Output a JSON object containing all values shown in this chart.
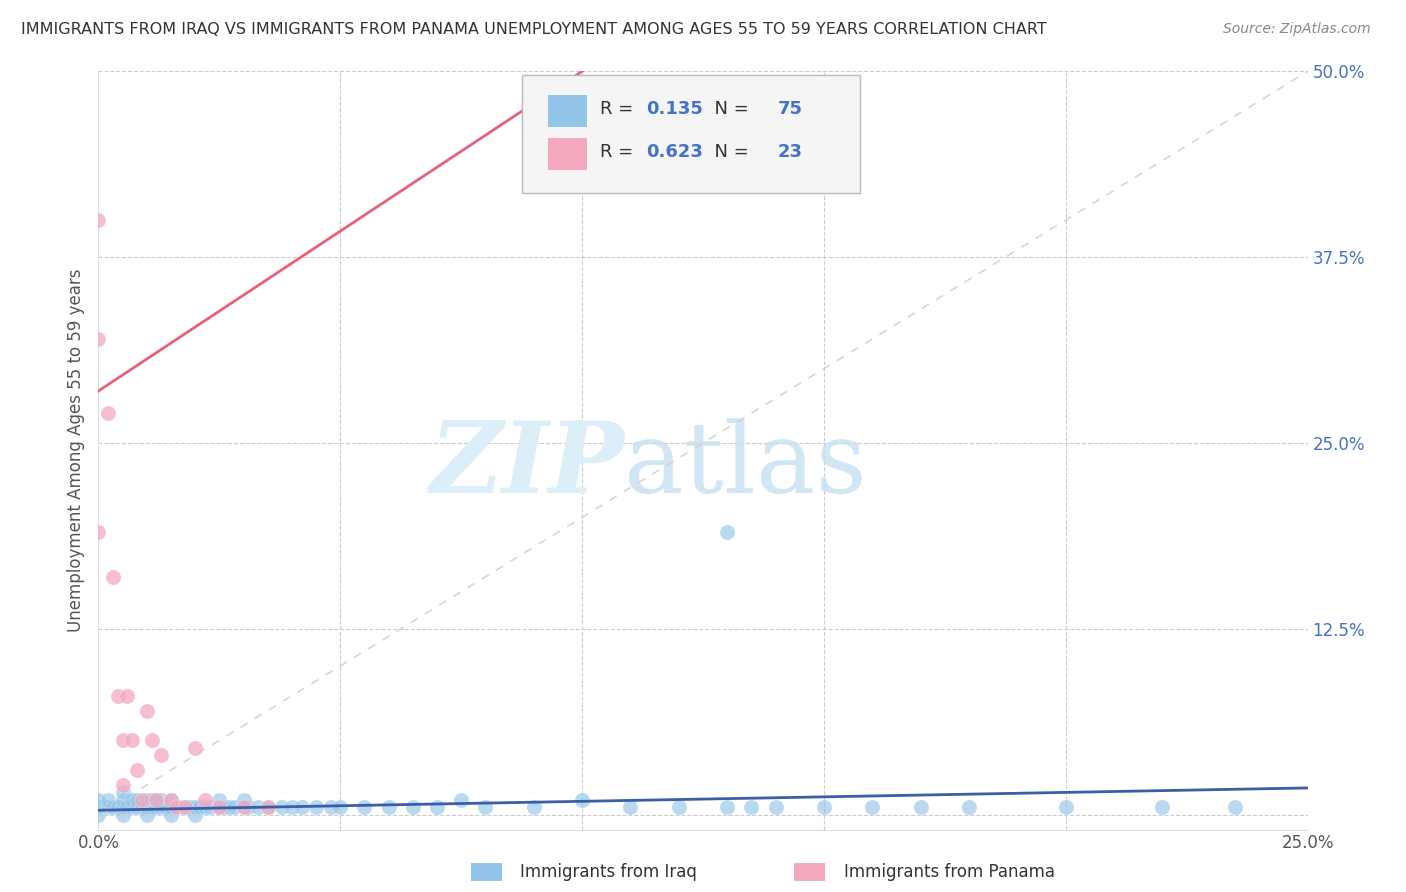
{
  "title": "IMMIGRANTS FROM IRAQ VS IMMIGRANTS FROM PANAMA UNEMPLOYMENT AMONG AGES 55 TO 59 YEARS CORRELATION CHART",
  "source": "Source: ZipAtlas.com",
  "ylabel": "Unemployment Among Ages 55 to 59 years",
  "xlim": [
    0.0,
    0.25
  ],
  "ylim": [
    -0.01,
    0.5
  ],
  "xticks": [
    0.0,
    0.05,
    0.1,
    0.15,
    0.2,
    0.25
  ],
  "xticklabels": [
    "0.0%",
    "",
    "",
    "",
    "",
    "25.0%"
  ],
  "yticks": [
    0.0,
    0.125,
    0.25,
    0.375,
    0.5
  ],
  "yticklabels": [
    "",
    "12.5%",
    "25.0%",
    "37.5%",
    "50.0%"
  ],
  "legend_iraq_R": "0.135",
  "legend_iraq_N": "75",
  "legend_panama_R": "0.623",
  "legend_panama_N": "23",
  "iraq_color": "#92C5E8",
  "panama_color": "#F4A8BE",
  "iraq_line_color": "#3A5FA8",
  "panama_line_color": "#E8607A",
  "ref_line_color": "#CCCCCC",
  "background_color": "#ffffff",
  "grid_color": "#cccccc",
  "legend_labels": [
    "Immigrants from Iraq",
    "Immigrants from Panama"
  ],
  "iraq_scatter_x": [
    0.0,
    0.0,
    0.0,
    0.002,
    0.002,
    0.003,
    0.004,
    0.005,
    0.005,
    0.005,
    0.005,
    0.006,
    0.007,
    0.007,
    0.008,
    0.008,
    0.009,
    0.01,
    0.01,
    0.01,
    0.011,
    0.011,
    0.012,
    0.012,
    0.013,
    0.013,
    0.014,
    0.015,
    0.015,
    0.015,
    0.016,
    0.017,
    0.018,
    0.019,
    0.02,
    0.02,
    0.021,
    0.022,
    0.023,
    0.025,
    0.025,
    0.026,
    0.027,
    0.028,
    0.03,
    0.03,
    0.031,
    0.033,
    0.035,
    0.038,
    0.04,
    0.042,
    0.045,
    0.048,
    0.05,
    0.055,
    0.06,
    0.065,
    0.07,
    0.075,
    0.08,
    0.09,
    0.1,
    0.11,
    0.12,
    0.13,
    0.135,
    0.14,
    0.15,
    0.16,
    0.17,
    0.18,
    0.2,
    0.22,
    0.235
  ],
  "iraq_scatter_y": [
    0.0,
    0.005,
    0.01,
    0.005,
    0.01,
    0.005,
    0.005,
    0.0,
    0.005,
    0.01,
    0.015,
    0.005,
    0.005,
    0.01,
    0.005,
    0.01,
    0.005,
    0.0,
    0.005,
    0.01,
    0.005,
    0.01,
    0.005,
    0.01,
    0.005,
    0.01,
    0.005,
    0.0,
    0.005,
    0.01,
    0.005,
    0.005,
    0.005,
    0.005,
    0.0,
    0.005,
    0.005,
    0.005,
    0.005,
    0.005,
    0.01,
    0.005,
    0.005,
    0.005,
    0.005,
    0.01,
    0.005,
    0.005,
    0.005,
    0.005,
    0.005,
    0.005,
    0.005,
    0.005,
    0.005,
    0.005,
    0.005,
    0.005,
    0.005,
    0.01,
    0.005,
    0.005,
    0.01,
    0.005,
    0.005,
    0.005,
    0.005,
    0.005,
    0.005,
    0.005,
    0.005,
    0.005,
    0.005,
    0.005,
    0.005
  ],
  "iraq_outlier_x": [
    0.13
  ],
  "iraq_outlier_y": [
    0.19
  ],
  "panama_scatter_x": [
    0.0,
    0.0,
    0.002,
    0.003,
    0.004,
    0.005,
    0.005,
    0.006,
    0.007,
    0.008,
    0.009,
    0.01,
    0.011,
    0.012,
    0.013,
    0.015,
    0.016,
    0.018,
    0.02,
    0.022,
    0.025,
    0.03,
    0.035
  ],
  "panama_scatter_y": [
    0.19,
    0.32,
    0.27,
    0.16,
    0.08,
    0.05,
    0.02,
    0.08,
    0.05,
    0.03,
    0.01,
    0.07,
    0.05,
    0.01,
    0.04,
    0.01,
    0.005,
    0.005,
    0.045,
    0.01,
    0.005,
    0.005,
    0.005
  ],
  "panama_outlier_x": [
    0.0
  ],
  "panama_outlier_y": [
    0.4
  ],
  "iraq_trendline_x": [
    0.0,
    0.25
  ],
  "iraq_trendline_y": [
    0.003,
    0.018
  ],
  "panama_trendline_x": [
    0.0,
    0.1
  ],
  "panama_trendline_y": [
    0.285,
    0.5
  ],
  "ref_line_x": [
    0.0,
    0.25
  ],
  "ref_line_y": [
    0.0,
    0.5
  ]
}
